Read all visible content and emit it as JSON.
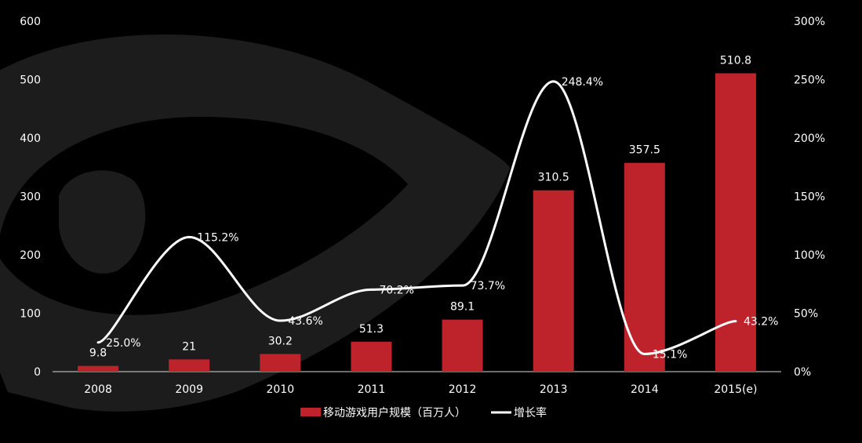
{
  "chart_data": {
    "type": "bar",
    "categories": [
      "2008",
      "2009",
      "2010",
      "2011",
      "2012",
      "2013",
      "2014",
      "2015(e)"
    ],
    "series": [
      {
        "name": "移动游戏用户规模（百万人）",
        "kind": "bar",
        "axis": "left",
        "color": "#be232b",
        "values": [
          9.8,
          21,
          30.2,
          51.3,
          89.1,
          310.5,
          357.5,
          510.8
        ],
        "labels": [
          "9.8",
          "21",
          "30.2",
          "51.3",
          "89.1",
          "310.5",
          "357.5",
          "510.8"
        ]
      },
      {
        "name": "增长率",
        "kind": "line",
        "axis": "right",
        "color": "#ffffff",
        "values": [
          25.0,
          115.2,
          43.6,
          70.2,
          73.7,
          248.4,
          15.1,
          43.2
        ],
        "labels": [
          "25.0%",
          "115.2%",
          "43.6%",
          "70.2%",
          "73.7%",
          "248.4%",
          "15.1%",
          "43.2%"
        ]
      }
    ],
    "left_axis": {
      "ylim": [
        0,
        600
      ],
      "ticks": [
        "0",
        "100",
        "200",
        "300",
        "400",
        "500",
        "600"
      ]
    },
    "right_axis": {
      "ylim": [
        0,
        300
      ],
      "ticks": [
        "0%",
        "50%",
        "100%",
        "150%",
        "200%",
        "250%",
        "300%"
      ]
    },
    "grid": false,
    "legend_position": "bottom-center",
    "background_color": "#000000",
    "watermark_color": "#1c1c1c"
  }
}
